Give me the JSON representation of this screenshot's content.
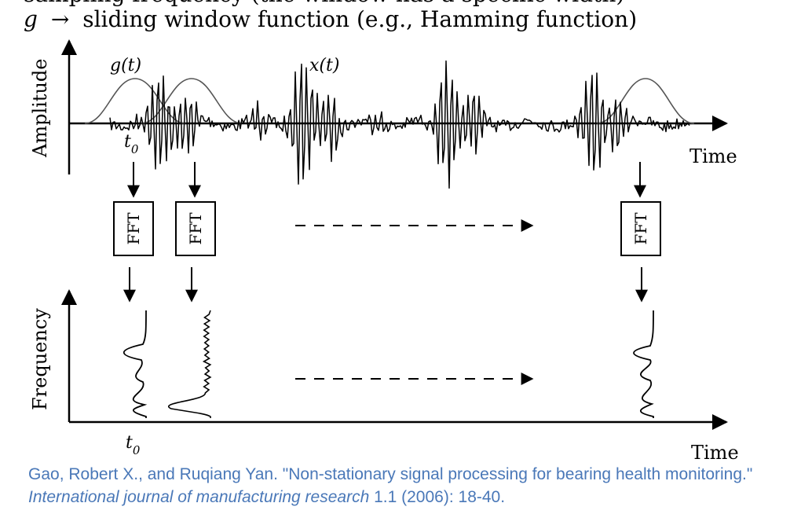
{
  "header": {
    "top_partial": "sampling frequency (the window has a specific width)",
    "var": "g",
    "arrow": "→",
    "text": "sliding window function (e.g., Hamming function)"
  },
  "top_plot": {
    "y_axis_label": "Amplitude",
    "x_axis_label": "Time",
    "window_label": "g(t)",
    "signal_label": "x(t)",
    "t0_label": "t",
    "t0_sub": "0"
  },
  "fft_box_label": "FFT",
  "bottom_plot": {
    "y_axis_label": "Frequency",
    "x_axis_label": "Time",
    "t0_label": "t",
    "t0_sub": "0"
  },
  "citation": {
    "authors_title": "Gao, Robert X., and Ruqiang Yan. \"Non-stationary signal processing for bearing health monitoring.\"",
    "journal": "International journal of manufacturing research",
    "details": "1.1 (2006): 18-40."
  },
  "colors": {
    "ink": "#000000",
    "window_curve": "#555555",
    "citation": "#4a78b8"
  }
}
